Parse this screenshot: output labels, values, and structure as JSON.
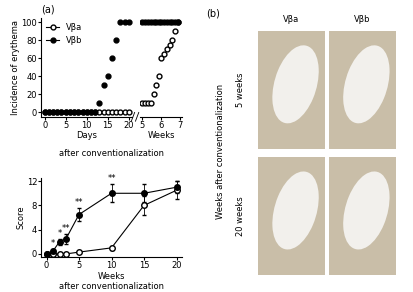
{
  "chart_data": [
    {
      "type": "line",
      "panel": "(a)",
      "ylabel": "Incidence of erythema",
      "xlabel": "Days",
      "annotation": "after conventionalization",
      "legend": "upper left",
      "xlim": [
        -0.8,
        20.8
      ],
      "xticks": [
        0,
        5,
        10,
        15,
        20
      ],
      "ylim": [
        -5,
        105
      ],
      "yticks": [
        0,
        20,
        40,
        60,
        80,
        100
      ],
      "series": [
        {
          "name": "Vβa",
          "color": "#000000",
          "marker": "open",
          "x": [
            0,
            1,
            2,
            3,
            4,
            5,
            6,
            7,
            8,
            9,
            10,
            11,
            12,
            13,
            14,
            15,
            16,
            17,
            18,
            19,
            20
          ],
          "values": [
            0,
            0,
            0,
            0,
            0,
            0,
            0,
            0,
            0,
            0,
            0,
            0,
            0,
            0,
            0,
            0,
            0,
            0,
            0,
            0,
            0
          ]
        },
        {
          "name": "Vβb",
          "color": "#000000",
          "marker": "filled",
          "x": [
            0,
            1,
            2,
            3,
            4,
            5,
            6,
            7,
            8,
            9,
            10,
            11,
            12,
            13,
            14,
            15,
            16,
            17,
            18,
            19,
            20
          ],
          "values": [
            0,
            0,
            0,
            0,
            0,
            0,
            0,
            0,
            0,
            0,
            0,
            0,
            0,
            10,
            30,
            40,
            60,
            80,
            100,
            100,
            100
          ]
        }
      ]
    },
    {
      "type": "line",
      "xlabel": "Weeks",
      "xlim": [
        4.9,
        7.1
      ],
      "xticks": [
        5,
        6,
        7
      ],
      "ylim": [
        -5,
        105
      ],
      "yticks": [
        0,
        20,
        40,
        60,
        80,
        100
      ],
      "tick_labels": "x",
      "series": [
        {
          "name": "Vβa",
          "color": "#000000",
          "marker": "open",
          "x": [
            5.0,
            5.15,
            5.3,
            5.45,
            5.6,
            5.75,
            5.9,
            6.0,
            6.15,
            6.3,
            6.45,
            6.6,
            6.75,
            6.9
          ],
          "values": [
            10,
            10,
            10,
            10,
            20,
            30,
            40,
            60,
            65,
            70,
            75,
            80,
            90,
            100
          ]
        },
        {
          "name": "Vβb",
          "color": "#000000",
          "marker": "filled",
          "x": [
            5.0,
            5.15,
            5.3,
            5.45,
            5.6,
            5.75,
            5.9,
            6.0,
            6.15,
            6.3,
            6.45,
            6.6,
            6.75,
            6.9
          ],
          "values": [
            100,
            100,
            100,
            100,
            100,
            100,
            100,
            100,
            100,
            100,
            100,
            100,
            100,
            100
          ]
        }
      ]
    },
    {
      "type": "line",
      "ylabel": "Score",
      "xlabel": "Weeks\nafter conventionalization",
      "xlim": [
        -0.8,
        20.8
      ],
      "xticks": [
        0,
        5,
        10,
        15,
        20
      ],
      "ylim": [
        -0.5,
        12.5
      ],
      "yticks": [
        0,
        4,
        8,
        12
      ],
      "series": [
        {
          "name": "Vβa",
          "color": "#000000",
          "marker": "open",
          "x": [
            0,
            1,
            2,
            3,
            5,
            10,
            15,
            20
          ],
          "values": [
            0,
            0,
            0,
            0,
            0.3,
            1,
            8,
            10.5
          ],
          "errors": [
            0,
            0,
            0,
            0,
            0.2,
            0.3,
            1.5,
            1.5
          ]
        },
        {
          "name": "Vβb",
          "color": "#000000",
          "marker": "filled",
          "x": [
            0,
            1,
            2,
            3,
            5,
            10,
            15,
            20
          ],
          "values": [
            0,
            0.5,
            2,
            2.5,
            6.5,
            10,
            10,
            11
          ],
          "errors": [
            0,
            0.3,
            0.5,
            0.8,
            1,
            1.5,
            1.5,
            1
          ]
        }
      ],
      "annotations": [
        {
          "x": 1,
          "text": "*"
        },
        {
          "x": 2,
          "text": "*"
        },
        {
          "x": 3,
          "text": "**"
        },
        {
          "x": 5,
          "text": "**"
        },
        {
          "x": 10,
          "text": "**"
        }
      ]
    }
  ],
  "photos": {
    "label": "(b)",
    "columns": [
      "Vβa",
      "Vβb"
    ],
    "rows": [
      "5 weeks",
      "20 weeks"
    ],
    "row_axis_label": "Weeks after conventionalization"
  }
}
